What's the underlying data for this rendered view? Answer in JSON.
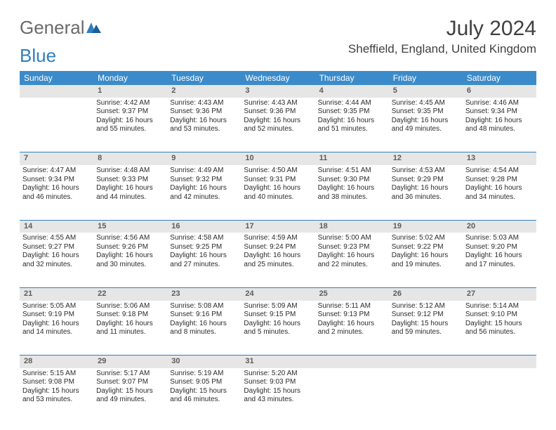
{
  "brand": {
    "general": "General",
    "blue": "Blue"
  },
  "title": "July 2024",
  "location": "Sheffield, England, United Kingdom",
  "colors": {
    "header_bg": "#3b8bca",
    "header_text": "#ffffff",
    "daynum_bg": "#e6e6e6",
    "daynum_text": "#5c5c5c",
    "week_sep": "#2f7fc1",
    "body_text": "#2b2b2b",
    "logo_gray": "#6a6a6a",
    "logo_blue": "#2f7fc1",
    "background": "#ffffff"
  },
  "typography": {
    "title_fontsize": 30,
    "location_fontsize": 17,
    "logo_fontsize": 26,
    "dayheader_fontsize": 12,
    "daynum_fontsize": 11,
    "cell_fontsize": 10
  },
  "day_headers": [
    "Sunday",
    "Monday",
    "Tuesday",
    "Wednesday",
    "Thursday",
    "Friday",
    "Saturday"
  ],
  "weeks": [
    [
      null,
      {
        "n": "1",
        "sunrise": "Sunrise: 4:42 AM",
        "sunset": "Sunset: 9:37 PM",
        "daylight": "Daylight: 16 hours and 55 minutes."
      },
      {
        "n": "2",
        "sunrise": "Sunrise: 4:43 AM",
        "sunset": "Sunset: 9:36 PM",
        "daylight": "Daylight: 16 hours and 53 minutes."
      },
      {
        "n": "3",
        "sunrise": "Sunrise: 4:43 AM",
        "sunset": "Sunset: 9:36 PM",
        "daylight": "Daylight: 16 hours and 52 minutes."
      },
      {
        "n": "4",
        "sunrise": "Sunrise: 4:44 AM",
        "sunset": "Sunset: 9:35 PM",
        "daylight": "Daylight: 16 hours and 51 minutes."
      },
      {
        "n": "5",
        "sunrise": "Sunrise: 4:45 AM",
        "sunset": "Sunset: 9:35 PM",
        "daylight": "Daylight: 16 hours and 49 minutes."
      },
      {
        "n": "6",
        "sunrise": "Sunrise: 4:46 AM",
        "sunset": "Sunset: 9:34 PM",
        "daylight": "Daylight: 16 hours and 48 minutes."
      }
    ],
    [
      {
        "n": "7",
        "sunrise": "Sunrise: 4:47 AM",
        "sunset": "Sunset: 9:34 PM",
        "daylight": "Daylight: 16 hours and 46 minutes."
      },
      {
        "n": "8",
        "sunrise": "Sunrise: 4:48 AM",
        "sunset": "Sunset: 9:33 PM",
        "daylight": "Daylight: 16 hours and 44 minutes."
      },
      {
        "n": "9",
        "sunrise": "Sunrise: 4:49 AM",
        "sunset": "Sunset: 9:32 PM",
        "daylight": "Daylight: 16 hours and 42 minutes."
      },
      {
        "n": "10",
        "sunrise": "Sunrise: 4:50 AM",
        "sunset": "Sunset: 9:31 PM",
        "daylight": "Daylight: 16 hours and 40 minutes."
      },
      {
        "n": "11",
        "sunrise": "Sunrise: 4:51 AM",
        "sunset": "Sunset: 9:30 PM",
        "daylight": "Daylight: 16 hours and 38 minutes."
      },
      {
        "n": "12",
        "sunrise": "Sunrise: 4:53 AM",
        "sunset": "Sunset: 9:29 PM",
        "daylight": "Daylight: 16 hours and 36 minutes."
      },
      {
        "n": "13",
        "sunrise": "Sunrise: 4:54 AM",
        "sunset": "Sunset: 9:28 PM",
        "daylight": "Daylight: 16 hours and 34 minutes."
      }
    ],
    [
      {
        "n": "14",
        "sunrise": "Sunrise: 4:55 AM",
        "sunset": "Sunset: 9:27 PM",
        "daylight": "Daylight: 16 hours and 32 minutes."
      },
      {
        "n": "15",
        "sunrise": "Sunrise: 4:56 AM",
        "sunset": "Sunset: 9:26 PM",
        "daylight": "Daylight: 16 hours and 30 minutes."
      },
      {
        "n": "16",
        "sunrise": "Sunrise: 4:58 AM",
        "sunset": "Sunset: 9:25 PM",
        "daylight": "Daylight: 16 hours and 27 minutes."
      },
      {
        "n": "17",
        "sunrise": "Sunrise: 4:59 AM",
        "sunset": "Sunset: 9:24 PM",
        "daylight": "Daylight: 16 hours and 25 minutes."
      },
      {
        "n": "18",
        "sunrise": "Sunrise: 5:00 AM",
        "sunset": "Sunset: 9:23 PM",
        "daylight": "Daylight: 16 hours and 22 minutes."
      },
      {
        "n": "19",
        "sunrise": "Sunrise: 5:02 AM",
        "sunset": "Sunset: 9:22 PM",
        "daylight": "Daylight: 16 hours and 19 minutes."
      },
      {
        "n": "20",
        "sunrise": "Sunrise: 5:03 AM",
        "sunset": "Sunset: 9:20 PM",
        "daylight": "Daylight: 16 hours and 17 minutes."
      }
    ],
    [
      {
        "n": "21",
        "sunrise": "Sunrise: 5:05 AM",
        "sunset": "Sunset: 9:19 PM",
        "daylight": "Daylight: 16 hours and 14 minutes."
      },
      {
        "n": "22",
        "sunrise": "Sunrise: 5:06 AM",
        "sunset": "Sunset: 9:18 PM",
        "daylight": "Daylight: 16 hours and 11 minutes."
      },
      {
        "n": "23",
        "sunrise": "Sunrise: 5:08 AM",
        "sunset": "Sunset: 9:16 PM",
        "daylight": "Daylight: 16 hours and 8 minutes."
      },
      {
        "n": "24",
        "sunrise": "Sunrise: 5:09 AM",
        "sunset": "Sunset: 9:15 PM",
        "daylight": "Daylight: 16 hours and 5 minutes."
      },
      {
        "n": "25",
        "sunrise": "Sunrise: 5:11 AM",
        "sunset": "Sunset: 9:13 PM",
        "daylight": "Daylight: 16 hours and 2 minutes."
      },
      {
        "n": "26",
        "sunrise": "Sunrise: 5:12 AM",
        "sunset": "Sunset: 9:12 PM",
        "daylight": "Daylight: 15 hours and 59 minutes."
      },
      {
        "n": "27",
        "sunrise": "Sunrise: 5:14 AM",
        "sunset": "Sunset: 9:10 PM",
        "daylight": "Daylight: 15 hours and 56 minutes."
      }
    ],
    [
      {
        "n": "28",
        "sunrise": "Sunrise: 5:15 AM",
        "sunset": "Sunset: 9:08 PM",
        "daylight": "Daylight: 15 hours and 53 minutes."
      },
      {
        "n": "29",
        "sunrise": "Sunrise: 5:17 AM",
        "sunset": "Sunset: 9:07 PM",
        "daylight": "Daylight: 15 hours and 49 minutes."
      },
      {
        "n": "30",
        "sunrise": "Sunrise: 5:19 AM",
        "sunset": "Sunset: 9:05 PM",
        "daylight": "Daylight: 15 hours and 46 minutes."
      },
      {
        "n": "31",
        "sunrise": "Sunrise: 5:20 AM",
        "sunset": "Sunset: 9:03 PM",
        "daylight": "Daylight: 15 hours and 43 minutes."
      },
      null,
      null,
      null
    ]
  ]
}
